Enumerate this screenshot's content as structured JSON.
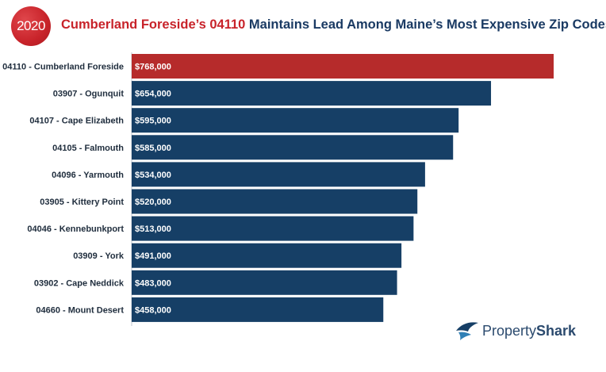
{
  "badge": {
    "year": "2020"
  },
  "title": {
    "highlight": "Cumberland Foreside’s 04110",
    "rest": " Maintains Lead Among Maine’s Most Expensive Zip Codes"
  },
  "logo": {
    "part1": "Property",
    "part2": "Shark"
  },
  "colors": {
    "highlight_bar": "#b62b2b",
    "bar": "#163f66",
    "title_highlight": "#c8232a",
    "title": "#1a3a63"
  },
  "chart_data": {
    "type": "bar",
    "orientation": "horizontal",
    "categories": [
      "04110 - Cumberland Foreside",
      "03907 - Ogunquit",
      "04107 - Cape Elizabeth",
      "04105 - Falmouth",
      "04096 - Yarmouth",
      "03905 - Kittery Point",
      "04046 - Kennebunkport",
      "03909 - York",
      "03902 - Cape Neddick",
      "04660 - Mount Desert"
    ],
    "values": [
      768000,
      654000,
      595000,
      585000,
      534000,
      520000,
      513000,
      491000,
      483000,
      458000
    ],
    "value_labels": [
      "$768,000",
      "$654,000",
      "$595,000",
      "$585,000",
      "$534,000",
      "$520,000",
      "$513,000",
      "$491,000",
      "$483,000",
      "$458,000"
    ],
    "highlight_index": 0,
    "xlim": [
      0,
      768000
    ],
    "grid": false,
    "legend": "none"
  }
}
